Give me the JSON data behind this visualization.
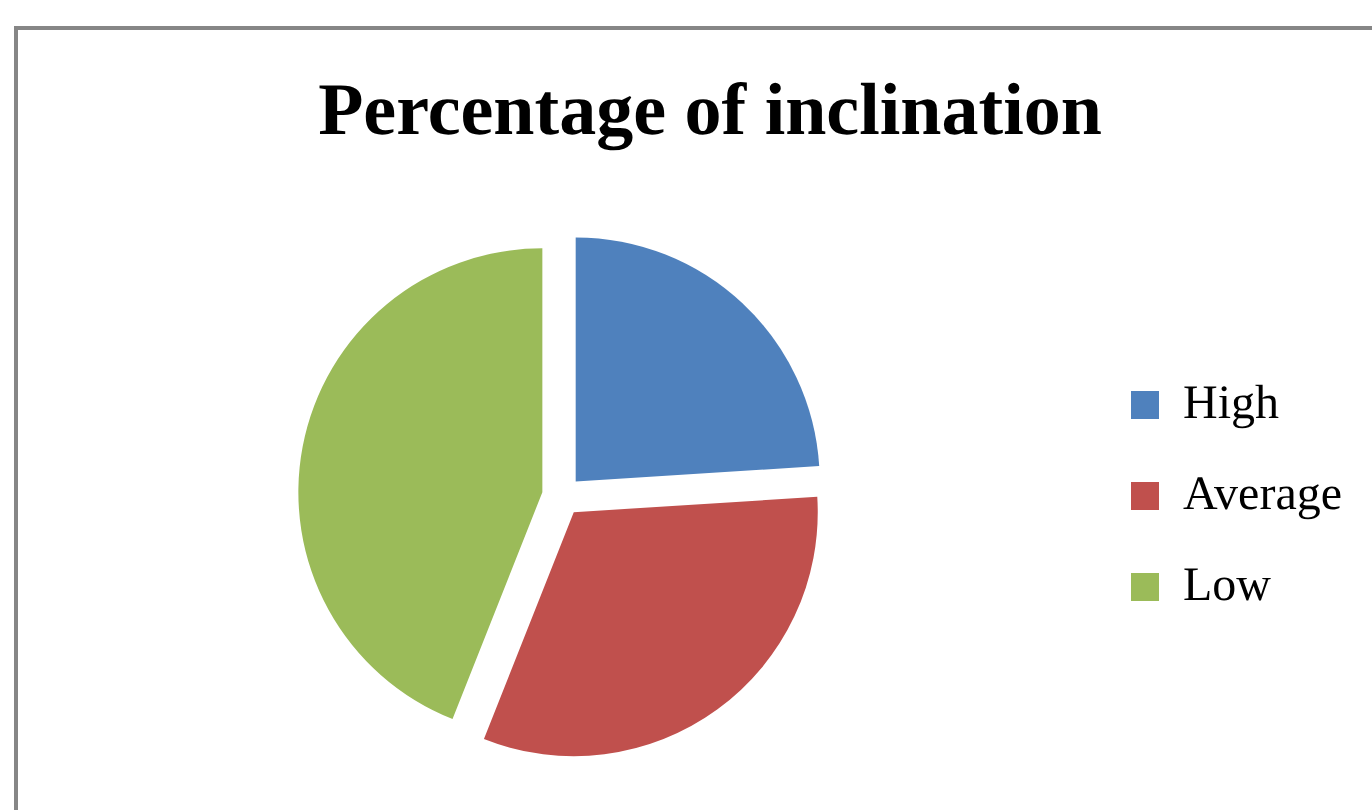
{
  "chart_data": {
    "type": "pie",
    "title": "Percentage of inclination",
    "categories": [
      "High",
      "Average",
      "Low"
    ],
    "values": [
      24,
      32,
      44
    ],
    "colors": [
      "#4f81bd",
      "#c0504d",
      "#9bbb59"
    ],
    "legend": "right"
  }
}
